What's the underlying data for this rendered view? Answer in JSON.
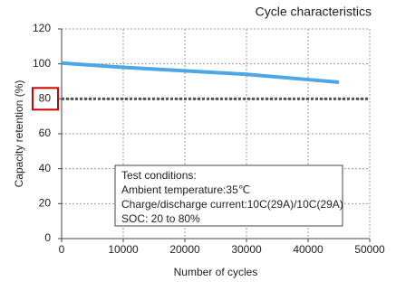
{
  "chart_data": {
    "type": "line",
    "title": "Cycle characteristics",
    "x_label": "Number of cycles",
    "y_label": "Capacity retention (%)",
    "x": [
      0,
      10000,
      20000,
      30000,
      40000,
      45000
    ],
    "series": [
      {
        "name": "Capacity retention",
        "color": "#4da6e8",
        "values": [
          100.5,
          98,
          96,
          94,
          91,
          89.5
        ]
      }
    ],
    "xlim": [
      0,
      50000
    ],
    "xticks": [
      0,
      10000,
      20000,
      30000,
      40000,
      50000
    ],
    "ylim": [
      0,
      120
    ],
    "yticks": [
      0,
      20,
      40,
      60,
      80,
      100,
      120
    ],
    "grid": true,
    "reference_line": 80,
    "reference_color": "#555555",
    "highlight_ytick": 80,
    "highlight_color": "#cc0000",
    "annotation": [
      "Test conditions:",
      "Ambient temperature:35℃",
      "Charge/discharge current:10C(29A)/10C(29A)",
      "SOC: 20 to 80%"
    ]
  }
}
